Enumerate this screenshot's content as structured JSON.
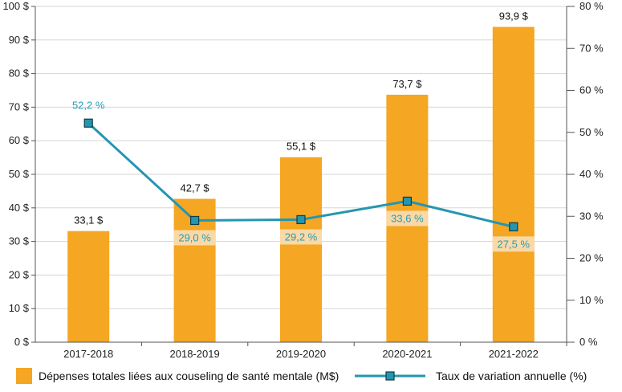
{
  "colors": {
    "bar": "#f5a623",
    "line": "#2596b0",
    "marker_fill": "#2596b0",
    "label_box": "#f9d9a6",
    "axis": "#555555"
  },
  "chart_data": {
    "type": "bar",
    "categories": [
      "2017-2018",
      "2018-2019",
      "2019-2020",
      "2020-2021",
      "2021-2022"
    ],
    "series": [
      {
        "name": "Dépenses totales liées aux couseling de santé mentale (M$)",
        "type": "bar",
        "axis": "left",
        "values": [
          33.1,
          42.7,
          55.1,
          73.7,
          93.9
        ],
        "labels": [
          "33,1 $",
          "42,7 $",
          "55,1 $",
          "73,7 $",
          "93,9 $"
        ]
      },
      {
        "name": "Taux de variation annuelle (%)",
        "type": "line",
        "axis": "right",
        "values": [
          52.2,
          29.0,
          29.2,
          33.6,
          27.5
        ],
        "labels": [
          "52,2 %",
          "29,0 %",
          "29,2 %",
          "33,6 %",
          "27,5 %"
        ]
      }
    ],
    "y_left": {
      "min": 0,
      "max": 100,
      "ticks": [
        "0 $",
        "10 $",
        "20 $",
        "30 $",
        "40 $",
        "50 $",
        "60 $",
        "70 $",
        "80 $",
        "90 $",
        "100 $"
      ]
    },
    "y_right": {
      "min": 0,
      "max": 80,
      "ticks": [
        "0 %",
        "10 %",
        "20 %",
        "30 %",
        "40 %",
        "50 %",
        "60 %",
        "70 %",
        "80 %"
      ]
    },
    "legend_position": "bottom",
    "grid": "horizontal"
  }
}
